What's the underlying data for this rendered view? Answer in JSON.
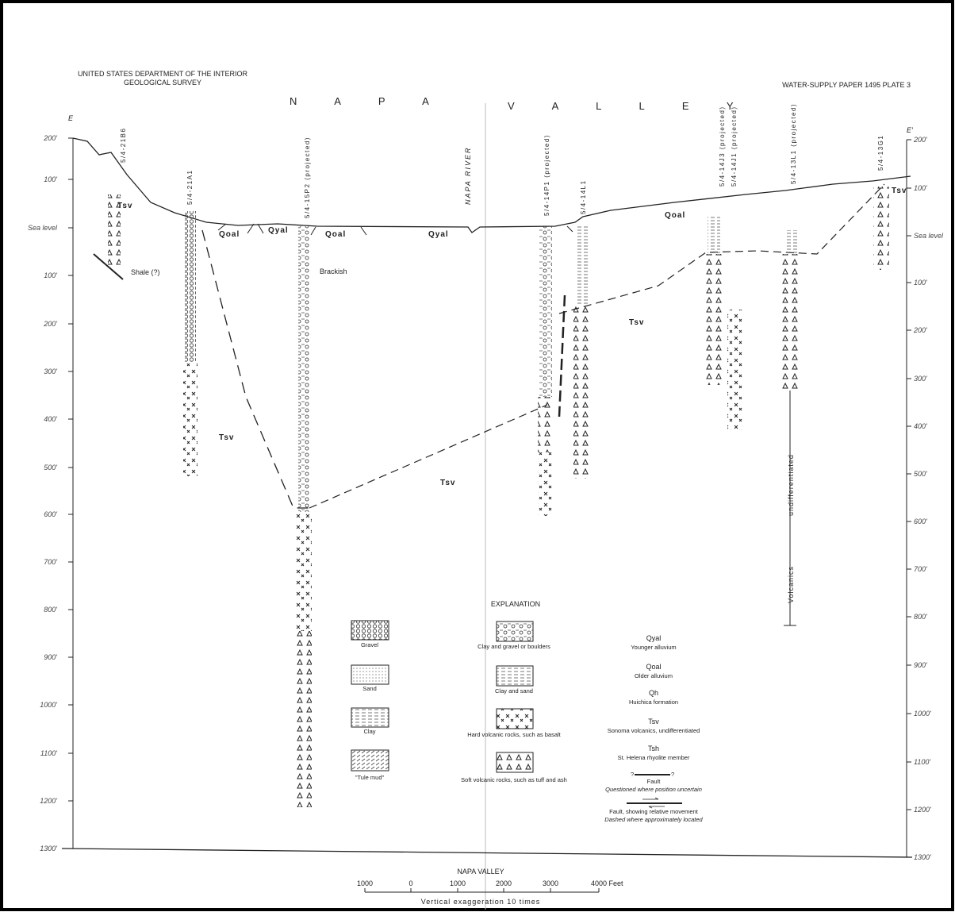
{
  "header": {
    "agency": "UNITED STATES DEPARTMENT OF THE INTERIOR",
    "bureau": "GEOLOGICAL SURVEY",
    "publication": "WATER-SUPPLY PAPER 1495   PLATE 3"
  },
  "section": {
    "title_left": "N A P A",
    "title_right": "V A L L E Y",
    "end_left": "E",
    "end_right": "E'",
    "depth_labels": [
      "200'",
      "100'",
      "Sea level",
      "100'",
      "200'",
      "300'",
      "400'",
      "500'",
      "600'",
      "700'",
      "800'",
      "900'",
      "1000'",
      "1100'",
      "1200'",
      "1300'"
    ],
    "wells": [
      "5/4-21B6",
      "5/4-21A1",
      "5/4-15P2 (projected)",
      "5/4-14P1 (projected)",
      "5/4-14L1",
      "5/4-14J3 (projected)",
      "5/4-14J1 (projected)",
      "5/4-13L1 (projected)",
      "5/4-13G1"
    ],
    "unit_labels": [
      "Tsv",
      "Qoal",
      "Qyal",
      "Qoal",
      "Qyal",
      "Qoal",
      "Tsv",
      "Tsv",
      "Tsv",
      "Tsv"
    ],
    "notes": [
      "Shale (?)",
      "Brackish",
      "NAPA RIVER",
      "undifferentiated",
      "Volcanics"
    ]
  },
  "explanation": {
    "title": "EXPLANATION",
    "lithology": [
      "Gravel",
      "Sand",
      "Clay",
      "\"Tule mud\"",
      "Clay and gravel or boulders",
      "Clay and sand",
      "Hard volcanic rocks, such as basalt",
      "Soft volcanic rocks, such as tuff and ash"
    ],
    "units": [
      {
        "symbol": "Qyal",
        "name": "Younger alluvium"
      },
      {
        "symbol": "Qoal",
        "name": "Older alluvium"
      },
      {
        "symbol": "Qh",
        "name": "Huichica formation"
      },
      {
        "symbol": "Tsv",
        "name": "Sonoma volcanics, undifferentiated"
      },
      {
        "symbol": "Tsh",
        "name": "St. Helena rhyolite member"
      }
    ],
    "fault_mark": "?",
    "faults": [
      {
        "label": "Fault",
        "note": "Questioned where position uncertain"
      },
      {
        "label": "Fault, showing relative movement",
        "note": "Dashed where approximately located"
      }
    ]
  },
  "footer": {
    "title": "NAPA VALLEY",
    "scale_labels": [
      "1000",
      "0",
      "1000",
      "2000",
      "3000",
      "4000 Feet"
    ],
    "exaggeration": "Vertical exaggeration 10 times"
  }
}
